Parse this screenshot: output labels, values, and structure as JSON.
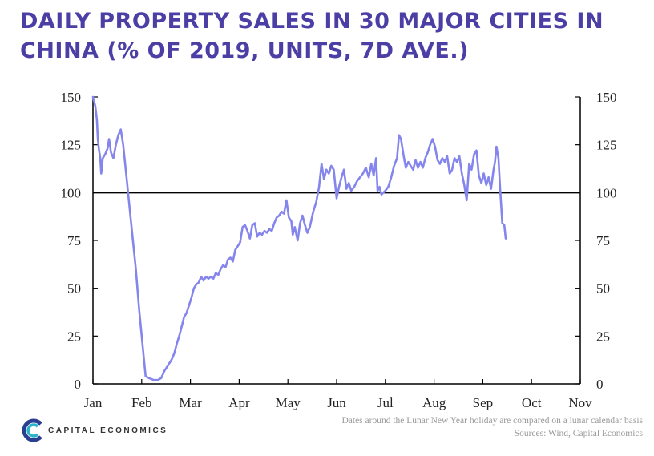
{
  "title": "DAILY PROPERTY SALES IN 30 MAJOR CITIES IN CHINA (% OF 2019, UNITS, 7D AVE.)",
  "footnote": "Dates around the Lunar New Year holiday are compared on a lunar calendar basis",
  "sources": "Sources: Wind, Capital Economics",
  "logo": {
    "text": "CAPITAL ECONOMICS",
    "icon": "capital-economics-logo-icon"
  },
  "colors": {
    "series": "#8585ee",
    "reference": "#000000",
    "title": "#4b3fa6"
  },
  "chart_data": {
    "type": "line",
    "xlabel": "",
    "ylabel": "",
    "ylim": [
      0,
      150
    ],
    "xlim": [
      0,
      10
    ],
    "yticks": [
      0,
      25,
      50,
      75,
      100,
      125,
      150
    ],
    "xtick_labels": [
      "Jan",
      "Feb",
      "Mar",
      "Apr",
      "May",
      "Jun",
      "Jul",
      "Aug",
      "Sep",
      "Oct",
      "Nov"
    ],
    "grid": false,
    "reference_line": 100,
    "series": [
      {
        "values": [
          [
            0.0,
            150
          ],
          [
            0.05,
            145
          ],
          [
            0.08,
            138
          ],
          [
            0.1,
            128
          ],
          [
            0.12,
            123
          ],
          [
            0.15,
            118
          ],
          [
            0.17,
            110
          ],
          [
            0.2,
            118
          ],
          [
            0.25,
            120
          ],
          [
            0.3,
            123
          ],
          [
            0.33,
            128
          ],
          [
            0.37,
            121
          ],
          [
            0.42,
            118
          ],
          [
            0.47,
            125
          ],
          [
            0.52,
            130
          ],
          [
            0.57,
            133
          ],
          [
            0.62,
            125
          ],
          [
            0.7,
            105
          ],
          [
            0.78,
            85
          ],
          [
            0.88,
            60
          ],
          [
            0.95,
            38
          ],
          [
            1.0,
            25
          ],
          [
            1.05,
            12
          ],
          [
            1.08,
            4
          ],
          [
            1.15,
            3
          ],
          [
            1.25,
            2
          ],
          [
            1.33,
            2
          ],
          [
            1.4,
            3
          ],
          [
            1.47,
            7
          ],
          [
            1.55,
            10
          ],
          [
            1.62,
            13
          ],
          [
            1.67,
            16
          ],
          [
            1.72,
            21
          ],
          [
            1.77,
            25
          ],
          [
            1.82,
            30
          ],
          [
            1.87,
            35
          ],
          [
            1.92,
            37
          ],
          [
            1.97,
            41
          ],
          [
            2.02,
            45
          ],
          [
            2.07,
            50
          ],
          [
            2.12,
            52
          ],
          [
            2.17,
            53
          ],
          [
            2.22,
            56
          ],
          [
            2.27,
            54
          ],
          [
            2.32,
            56
          ],
          [
            2.37,
            55
          ],
          [
            2.42,
            56
          ],
          [
            2.47,
            55
          ],
          [
            2.52,
            58
          ],
          [
            2.57,
            57
          ],
          [
            2.62,
            60
          ],
          [
            2.67,
            62
          ],
          [
            2.72,
            61
          ],
          [
            2.77,
            65
          ],
          [
            2.82,
            66
          ],
          [
            2.87,
            64
          ],
          [
            2.92,
            70
          ],
          [
            2.97,
            72
          ],
          [
            3.02,
            74
          ],
          [
            3.07,
            82
          ],
          [
            3.12,
            83
          ],
          [
            3.17,
            80
          ],
          [
            3.22,
            76
          ],
          [
            3.27,
            83
          ],
          [
            3.32,
            84
          ],
          [
            3.37,
            77
          ],
          [
            3.42,
            79
          ],
          [
            3.47,
            78
          ],
          [
            3.52,
            80
          ],
          [
            3.57,
            79
          ],
          [
            3.62,
            81
          ],
          [
            3.67,
            80
          ],
          [
            3.72,
            84
          ],
          [
            3.77,
            87
          ],
          [
            3.82,
            88
          ],
          [
            3.87,
            90
          ],
          [
            3.92,
            89
          ],
          [
            3.97,
            96
          ],
          [
            4.02,
            87
          ],
          [
            4.07,
            85
          ],
          [
            4.1,
            78
          ],
          [
            4.14,
            82
          ],
          [
            4.2,
            75
          ],
          [
            4.25,
            84
          ],
          [
            4.3,
            88
          ],
          [
            4.35,
            83
          ],
          [
            4.4,
            79
          ],
          [
            4.45,
            82
          ],
          [
            4.52,
            90
          ],
          [
            4.58,
            95
          ],
          [
            4.64,
            103
          ],
          [
            4.69,
            115
          ],
          [
            4.74,
            107
          ],
          [
            4.79,
            112
          ],
          [
            4.84,
            110
          ],
          [
            4.89,
            114
          ],
          [
            4.94,
            112
          ],
          [
            5.0,
            97
          ],
          [
            5.05,
            103
          ],
          [
            5.1,
            108
          ],
          [
            5.15,
            112
          ],
          [
            5.2,
            102
          ],
          [
            5.25,
            105
          ],
          [
            5.3,
            101
          ],
          [
            5.36,
            103
          ],
          [
            5.42,
            106
          ],
          [
            5.48,
            108
          ],
          [
            5.54,
            110
          ],
          [
            5.6,
            113
          ],
          [
            5.66,
            108
          ],
          [
            5.71,
            115
          ],
          [
            5.76,
            109
          ],
          [
            5.81,
            118
          ],
          [
            5.84,
            101
          ],
          [
            5.88,
            103
          ],
          [
            5.92,
            99
          ],
          [
            6.0,
            101
          ],
          [
            6.06,
            103
          ],
          [
            6.12,
            108
          ],
          [
            6.18,
            114
          ],
          [
            6.24,
            118
          ],
          [
            6.28,
            130
          ],
          [
            6.32,
            128
          ],
          [
            6.37,
            120
          ],
          [
            6.42,
            113
          ],
          [
            6.47,
            116
          ],
          [
            6.52,
            114
          ],
          [
            6.57,
            112
          ],
          [
            6.62,
            117
          ],
          [
            6.67,
            113
          ],
          [
            6.72,
            116
          ],
          [
            6.77,
            113
          ],
          [
            6.82,
            118
          ],
          [
            6.87,
            121
          ],
          [
            6.92,
            125
          ],
          [
            6.97,
            128
          ],
          [
            7.02,
            124
          ],
          [
            7.07,
            117
          ],
          [
            7.12,
            115
          ],
          [
            7.17,
            118
          ],
          [
            7.22,
            116
          ],
          [
            7.27,
            119
          ],
          [
            7.32,
            110
          ],
          [
            7.37,
            112
          ],
          [
            7.42,
            118
          ],
          [
            7.47,
            116
          ],
          [
            7.52,
            119
          ],
          [
            7.57,
            110
          ],
          [
            7.62,
            104
          ],
          [
            7.67,
            96
          ],
          [
            7.72,
            115
          ],
          [
            7.77,
            112
          ],
          [
            7.82,
            120
          ],
          [
            7.87,
            122
          ],
          [
            7.92,
            109
          ],
          [
            7.97,
            105
          ],
          [
            8.02,
            110
          ],
          [
            8.07,
            104
          ],
          [
            8.12,
            108
          ],
          [
            8.17,
            102
          ],
          [
            8.22,
            112
          ],
          [
            8.25,
            116
          ],
          [
            8.28,
            124
          ],
          [
            8.32,
            118
          ],
          [
            8.36,
            100
          ],
          [
            8.4,
            84
          ],
          [
            8.44,
            83
          ],
          [
            8.47,
            76
          ]
        ]
      }
    ]
  }
}
